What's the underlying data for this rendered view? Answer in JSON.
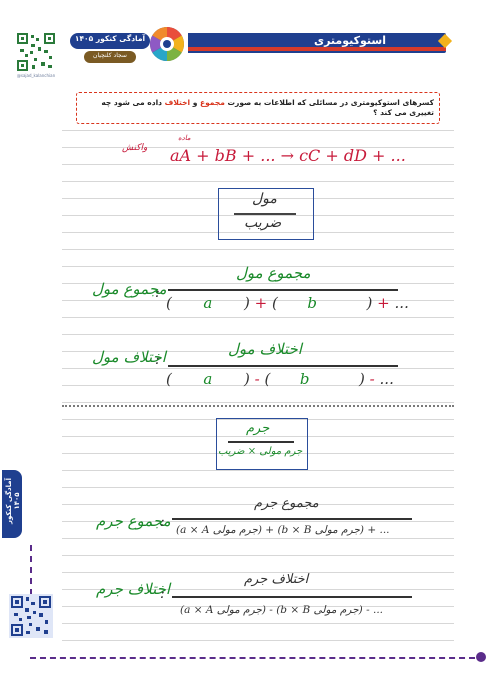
{
  "header": {
    "title": "استوکیومتری",
    "brand": "آمادگی کنکور ۱۴۰۵",
    "author": "سجاد کلنچیان",
    "qr_caption": "@sajad_kalanchian"
  },
  "question": {
    "prefix": "کسرهای استوکیومتری در مسائلی که اطلاعات به صورت ",
    "term1": "مجموع",
    "middle": " و ",
    "term2": "اختلاف",
    "suffix": " داده می شود چه تغییری می کند ؟"
  },
  "side_tab": {
    "label": "آمادگی کنکور ۱۴۰۵"
  },
  "equation": {
    "reactant_note": "ماده",
    "left_note": "واکنش",
    "terms": "aA + bB + ... → cC + dD + ..."
  },
  "box1": {
    "top": "مول",
    "bottom": "ضریب"
  },
  "sum_mol": {
    "label": "مجموع مول",
    "numerator": "مجموع مول",
    "denominator": [
      "(",
      "a",
      ")",
      "+",
      "(",
      "b",
      ")",
      "+",
      "..."
    ]
  },
  "diff_mol": {
    "label": "اختلاف مول",
    "numerator": "اختلاف مول",
    "denominator": [
      "(",
      "a",
      ")",
      "-",
      "(",
      "b",
      ")",
      "-",
      "..."
    ]
  },
  "box2": {
    "top": "جرم",
    "bottom": "جرم مولی × ضریب"
  },
  "sum_mass": {
    "label": "مجموع جرم",
    "numerator": "مجموع جرم",
    "denominator": "(a × A جرم مولی) + (b × B جرم مولی) + ..."
  },
  "diff_mass": {
    "label": "اختلاف جرم",
    "numerator": "اختلاف جرم",
    "denominator": "(a × A جرم مولی) - (b × B جرم مولی) - ..."
  },
  "colors": {
    "navy": "#1f3f8f",
    "red": "#d9341c",
    "gold": "#f2b21c",
    "purple": "#5a2c8a"
  },
  "icons": [
    "qr-code-icon",
    "brand-logo-icon"
  ]
}
